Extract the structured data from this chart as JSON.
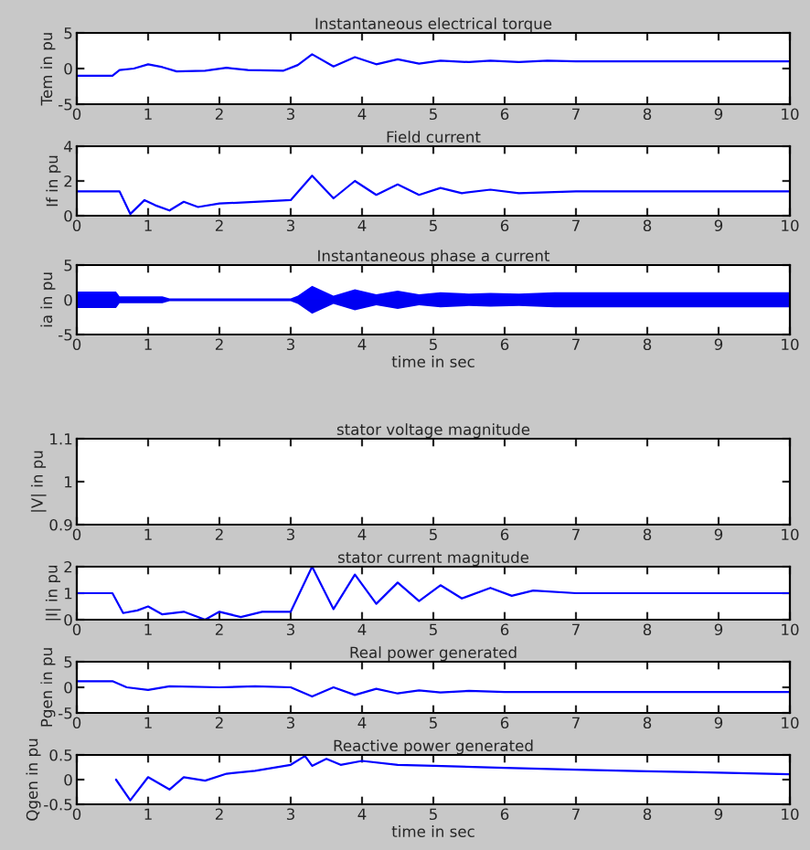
{
  "chart_data": [
    {
      "type": "line",
      "title": "Instantaneous electrical torque",
      "ylabel": "Tem in pu",
      "xlim": [
        0,
        10
      ],
      "xticks": [
        0,
        1,
        2,
        3,
        4,
        5,
        6,
        7,
        8,
        9,
        10
      ],
      "ylim": [
        -5,
        5
      ],
      "yticks": [
        -5,
        0,
        5
      ],
      "grid": false,
      "line_style": "solid",
      "series": [
        {
          "color": "#0000ff",
          "x": [
            0,
            0.5,
            0.6,
            0.8,
            1.0,
            1.2,
            1.4,
            1.8,
            2.1,
            2.4,
            2.9,
            3.1,
            3.3,
            3.6,
            3.9,
            4.2,
            4.5,
            4.8,
            5.1,
            5.5,
            5.8,
            6.2,
            6.6,
            7,
            10
          ],
          "values": [
            -1,
            -1,
            -0.2,
            0,
            0.6,
            0.2,
            -0.4,
            -0.3,
            0.1,
            -0.2,
            -0.3,
            0.5,
            2.0,
            0.3,
            1.6,
            0.6,
            1.3,
            0.7,
            1.1,
            0.9,
            1.1,
            0.9,
            1.1,
            1.0,
            1.0
          ]
        }
      ]
    },
    {
      "type": "line",
      "title": "Field current",
      "ylabel": "If in pu",
      "xlim": [
        0,
        10
      ],
      "xticks": [
        0,
        1,
        2,
        3,
        4,
        5,
        6,
        7,
        8,
        9,
        10
      ],
      "ylim": [
        0,
        4
      ],
      "yticks": [
        0,
        2,
        4
      ],
      "grid": false,
      "line_style": "solid",
      "series": [
        {
          "color": "#0000ff",
          "x": [
            0,
            0.6,
            0.75,
            0.95,
            1.1,
            1.3,
            1.5,
            1.7,
            2,
            3,
            3.3,
            3.6,
            3.9,
            4.2,
            4.5,
            4.8,
            5.1,
            5.4,
            5.8,
            6.2,
            7,
            10
          ],
          "values": [
            1.4,
            1.4,
            0.1,
            0.9,
            0.6,
            0.3,
            0.8,
            0.5,
            0.7,
            0.9,
            2.3,
            1.0,
            2.0,
            1.2,
            1.8,
            1.2,
            1.6,
            1.3,
            1.5,
            1.3,
            1.4,
            1.4
          ]
        }
      ]
    },
    {
      "type": "line",
      "title": "Instantaneous phase a current",
      "xlabel": "time in sec",
      "ylabel": "ia in pu",
      "xlim": [
        0,
        10
      ],
      "xticks": [
        0,
        1,
        2,
        3,
        4,
        5,
        6,
        7,
        8,
        9,
        10
      ],
      "ylim": [
        -5,
        5
      ],
      "yticks": [
        -5,
        0,
        5
      ],
      "grid": false,
      "series": [
        {
          "type": "area",
          "color": "#0000ff",
          "x": [
            0,
            0.55,
            0.6,
            1.2,
            1.3,
            3.0,
            3.1,
            3.3,
            3.6,
            3.9,
            4.2,
            4.5,
            4.8,
            5.1,
            5.5,
            5.8,
            6.2,
            6.7,
            10
          ],
          "values": [
            1.2,
            1.2,
            0.5,
            0.5,
            0.2,
            0.2,
            0.6,
            2.0,
            0.6,
            1.5,
            0.8,
            1.3,
            0.8,
            1.1,
            0.9,
            1.0,
            0.9,
            1.1,
            1.1
          ]
        },
        {
          "type": "area",
          "color": "#0000f0",
          "x": [
            0,
            0.55,
            0.6,
            1.2,
            1.3,
            3.0,
            3.1,
            3.3,
            3.6,
            3.9,
            4.2,
            4.5,
            4.8,
            5.1,
            5.5,
            5.8,
            6.2,
            6.7,
            10
          ],
          "values": [
            -1.2,
            -1.2,
            -0.5,
            -0.5,
            -0.2,
            -0.2,
            -0.6,
            -2.0,
            -0.6,
            -1.5,
            -0.8,
            -1.3,
            -0.8,
            -1.1,
            -0.9,
            -1.0,
            -0.9,
            -1.1,
            -1.1
          ]
        }
      ]
    },
    {
      "type": "line",
      "title": "stator voltage magnitude",
      "ylabel": "|V| in pu",
      "xlim": [
        0,
        10
      ],
      "xticks": [
        0,
        1,
        2,
        3,
        4,
        5,
        6,
        7,
        8,
        9,
        10
      ],
      "ylim": [
        0.9,
        1.1
      ],
      "yticks": [
        0.9,
        1,
        1.1
      ],
      "grid": false
    },
    {
      "type": "line",
      "title": "stator current magnitude",
      "ylabel": "|I| in pu",
      "xlim": [
        0,
        10
      ],
      "xticks": [
        0,
        1,
        2,
        3,
        4,
        5,
        6,
        7,
        8,
        9,
        10
      ],
      "ylim": [
        0,
        2
      ],
      "yticks": [
        0,
        1,
        2
      ],
      "grid": false,
      "line_style": "solid",
      "series": [
        {
          "color": "#0000ff",
          "x": [
            0,
            0.5,
            0.65,
            0.85,
            1.0,
            1.2,
            1.5,
            1.8,
            2.0,
            2.3,
            2.6,
            3.0,
            3.3,
            3.6,
            3.9,
            4.2,
            4.5,
            4.8,
            5.1,
            5.4,
            5.8,
            6.1,
            6.4,
            7,
            10
          ],
          "values": [
            1,
            1,
            0.25,
            0.35,
            0.5,
            0.2,
            0.3,
            0.0,
            0.3,
            0.1,
            0.3,
            0.3,
            2.0,
            0.4,
            1.7,
            0.6,
            1.4,
            0.7,
            1.3,
            0.8,
            1.2,
            0.9,
            1.1,
            1.0,
            1.0
          ]
        }
      ]
    },
    {
      "type": "line",
      "title": "Real power generated",
      "ylabel": "Pgen in pu",
      "xlim": [
        0,
        10
      ],
      "xticks": [
        0,
        1,
        2,
        3,
        4,
        5,
        6,
        7,
        8,
        9,
        10
      ],
      "ylim": [
        -5,
        5
      ],
      "yticks": [
        -5,
        0,
        5
      ],
      "grid": false,
      "line_style": "solid",
      "series": [
        {
          "color": "#0000ff",
          "x": [
            0,
            0.5,
            0.7,
            1.0,
            1.3,
            2,
            2.5,
            3,
            3.3,
            3.6,
            3.9,
            4.2,
            4.5,
            4.8,
            5.1,
            5.5,
            6,
            10
          ],
          "values": [
            1.2,
            1.2,
            0,
            -0.5,
            0.2,
            0,
            0.2,
            0,
            -1.8,
            0,
            -1.5,
            -0.3,
            -1.2,
            -0.6,
            -1.0,
            -0.7,
            -0.9,
            -0.9
          ]
        }
      ]
    },
    {
      "type": "line",
      "title": "Reactive power generated",
      "xlabel": "time in sec",
      "ylabel": "Qgen in pu",
      "xlim": [
        0,
        10
      ],
      "xticks": [
        0,
        1,
        2,
        3,
        4,
        5,
        6,
        7,
        8,
        9,
        10
      ],
      "ylim": [
        -0.5,
        0.5
      ],
      "yticks": [
        -0.5,
        0,
        0.5
      ],
      "grid": false,
      "line_style": "solid",
      "series": [
        {
          "color": "#0000ff",
          "x": [
            0.55,
            0.75,
            1.0,
            1.3,
            1.5,
            1.8,
            2.1,
            2.5,
            3.0,
            3.2,
            3.3,
            3.5,
            3.7,
            4,
            4.5,
            5,
            6,
            7,
            8,
            9,
            10
          ],
          "values": [
            0.0,
            -0.42,
            0.05,
            -0.2,
            0.05,
            -0.02,
            0.12,
            0.18,
            0.3,
            0.48,
            0.28,
            0.42,
            0.3,
            0.38,
            0.3,
            0.28,
            0.24,
            0.2,
            0.17,
            0.14,
            0.11
          ]
        }
      ]
    }
  ]
}
